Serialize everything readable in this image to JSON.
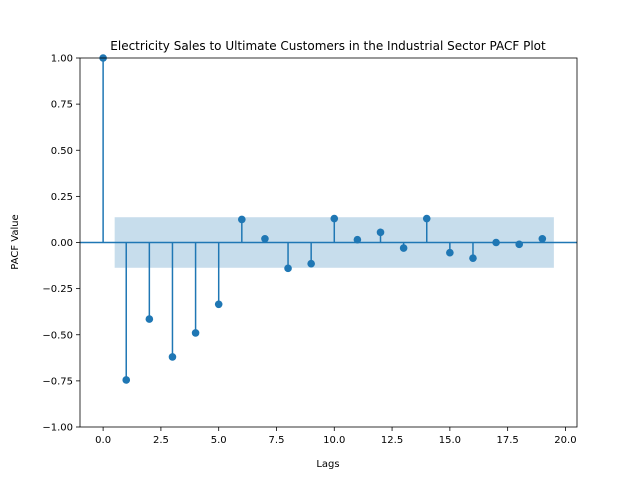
{
  "chart_data": {
    "type": "stem",
    "title": "Electricity Sales to Ultimate Customers in the Industrial Sector PACF Plot",
    "xlabel": "Lags",
    "ylabel": "PACF Value",
    "xlim": [
      -1,
      20.5
    ],
    "ylim": [
      -1.0,
      1.0
    ],
    "xticks": [
      0.0,
      2.5,
      5.0,
      7.5,
      10.0,
      12.5,
      15.0,
      17.5,
      20.0
    ],
    "xtick_labels": [
      "0.0",
      "2.5",
      "5.0",
      "7.5",
      "10.0",
      "12.5",
      "15.0",
      "17.5",
      "20.0"
    ],
    "yticks": [
      -1.0,
      -0.75,
      -0.5,
      -0.25,
      0.0,
      0.25,
      0.5,
      0.75,
      1.0
    ],
    "ytick_labels": [
      "−1.00",
      "−0.75",
      "−0.50",
      "−0.25",
      "0.00",
      "0.25",
      "0.50",
      "0.75",
      "1.00"
    ],
    "confidence_band": {
      "x_start": 0.5,
      "x_end": 19.5,
      "lower": -0.137,
      "upper": 0.137
    },
    "lags": [
      0,
      1,
      2,
      3,
      4,
      5,
      6,
      7,
      8,
      9,
      10,
      11,
      12,
      13,
      14,
      15,
      16,
      17,
      18,
      19
    ],
    "values": [
      1.0,
      -0.745,
      -0.415,
      -0.62,
      -0.49,
      -0.335,
      0.125,
      0.02,
      -0.14,
      -0.115,
      0.13,
      0.015,
      0.055,
      -0.03,
      0.13,
      -0.055,
      -0.085,
      0.0,
      -0.01,
      0.02
    ],
    "colors": {
      "stem": "#1f77b4",
      "band": "#1f77b4",
      "zero_line": "#1f77b4"
    }
  }
}
